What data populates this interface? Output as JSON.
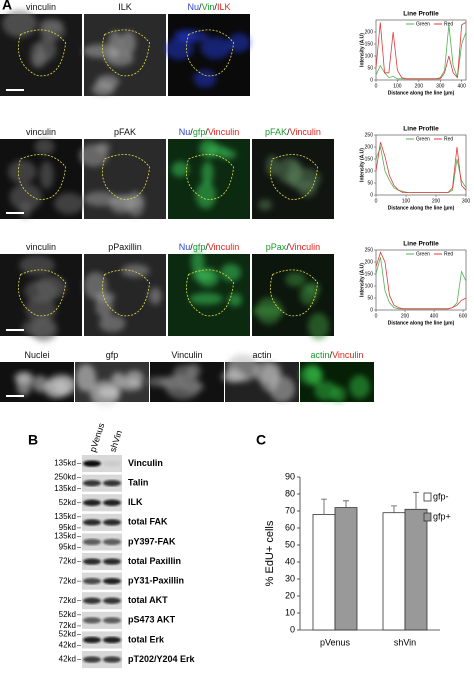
{
  "figure": {
    "panel_labels": [
      "A",
      "B",
      "C"
    ],
    "image_labels": [
      [
        [
          {
            "text": "vinculin",
            "color": "#111111"
          }
        ],
        [
          {
            "text": "ILK",
            "color": "#111111"
          }
        ],
        [
          {
            "text": "Nu",
            "color": "#2a3fd6"
          },
          {
            "text": "/",
            "color": "#111111"
          },
          {
            "text": "Vin",
            "color": "#1a9a2a"
          },
          {
            "text": "/",
            "color": "#111111"
          },
          {
            "text": "ILK",
            "color": "#e0201a"
          }
        ]
      ],
      [
        [
          {
            "text": "vinculin",
            "color": "#111111"
          }
        ],
        [
          {
            "text": "pFAK",
            "color": "#111111"
          }
        ],
        [
          {
            "text": "Nu",
            "color": "#2a3fd6"
          },
          {
            "text": "/",
            "color": "#111111"
          },
          {
            "text": "gfp",
            "color": "#1a9a2a"
          },
          {
            "text": "/",
            "color": "#111111"
          },
          {
            "text": "Vinculin",
            "color": "#e0201a"
          }
        ],
        [
          {
            "text": "pFAK",
            "color": "#1a9a2a"
          },
          {
            "text": "/",
            "color": "#111111"
          },
          {
            "text": "Vinculin",
            "color": "#e0201a"
          }
        ]
      ],
      [
        [
          {
            "text": "vinculin",
            "color": "#111111"
          }
        ],
        [
          {
            "text": "pPaxillin",
            "color": "#111111"
          }
        ],
        [
          {
            "text": "Nu",
            "color": "#2a3fd6"
          },
          {
            "text": "/",
            "color": "#111111"
          },
          {
            "text": "gfp",
            "color": "#1a9a2a"
          },
          {
            "text": "/",
            "color": "#111111"
          },
          {
            "text": "Vinculin",
            "color": "#e0201a"
          }
        ],
        [
          {
            "text": "pPax",
            "color": "#1a9a2a"
          },
          {
            "text": "/",
            "color": "#111111"
          },
          {
            "text": "Vinculin",
            "color": "#e0201a"
          }
        ]
      ],
      [
        [
          {
            "text": "Nuclei",
            "color": "#111111"
          }
        ],
        [
          {
            "text": "gfp",
            "color": "#111111"
          }
        ],
        [
          {
            "text": "Vinculin",
            "color": "#111111"
          }
        ],
        [
          {
            "text": "actin",
            "color": "#111111"
          }
        ],
        [
          {
            "text": "actin",
            "color": "#1a9a2a"
          },
          {
            "text": "/",
            "color": "#111111"
          },
          {
            "text": "Vinculin",
            "color": "#e0201a"
          }
        ]
      ]
    ],
    "blot": {
      "lanes": [
        "pVenus",
        "shVin"
      ],
      "rows": [
        {
          "markers": [
            "135kd"
          ],
          "protein": "Vinculin"
        },
        {
          "markers": [
            "250kd",
            "135kd"
          ],
          "protein": "Talin"
        },
        {
          "markers": [
            "52kd"
          ],
          "protein": "ILK"
        },
        {
          "markers": [
            "135kd",
            "95kd"
          ],
          "protein": "total FAK"
        },
        {
          "markers": [
            "135kd",
            "95kd"
          ],
          "protein": "pY397-FAK"
        },
        {
          "markers": [
            "72kd"
          ],
          "protein": "total Paxillin"
        },
        {
          "markers": [
            "72kd"
          ],
          "protein": "pY31-Paxillin"
        },
        {
          "markers": [
            "72kd"
          ],
          "protein": "total AKT"
        },
        {
          "markers": [
            "52kd",
            "72kd"
          ],
          "protein": "pS473 AKT"
        },
        {
          "markers": [
            "52kd",
            "42kd"
          ],
          "protein": "total Erk"
        },
        {
          "markers": [
            "42kd"
          ],
          "protein": "pT202/Y204 Erk"
        }
      ]
    }
  },
  "chart_data": [
    {
      "type": "line",
      "title": "Line Profile",
      "xlabel": "Distance along the line (µm)",
      "ylabel": "Intensity (A.U)",
      "x": [
        0,
        20,
        40,
        60,
        80,
        100,
        120,
        140,
        160,
        180,
        200,
        220,
        240,
        260,
        280,
        300,
        320,
        340,
        360,
        380,
        400,
        420
      ],
      "series": [
        {
          "name": "Green",
          "color": "#55b055",
          "values": [
            20,
            60,
            30,
            10,
            15,
            5,
            5,
            5,
            5,
            5,
            5,
            5,
            5,
            5,
            5,
            10,
            40,
            230,
            60,
            10,
            150,
            200
          ]
        },
        {
          "name": "Red",
          "color": "#e03a3a",
          "values": [
            50,
            240,
            30,
            30,
            200,
            40,
            10,
            5,
            5,
            5,
            5,
            5,
            5,
            5,
            5,
            5,
            30,
            100,
            30,
            10,
            230,
            240
          ]
        }
      ],
      "xlim": [
        0,
        420
      ],
      "ylim": [
        0,
        250
      ],
      "xticks": [
        0,
        100,
        200,
        300,
        400
      ],
      "yticks": [
        0,
        50,
        100,
        150,
        200
      ]
    },
    {
      "type": "line",
      "title": "Line Profile",
      "xlabel": "Distance along the line (µm)",
      "ylabel": "Intensity (A.U)",
      "x": [
        0,
        15,
        30,
        45,
        60,
        75,
        90,
        105,
        120,
        135,
        150,
        165,
        180,
        195,
        210,
        225,
        240,
        255,
        270,
        285,
        300
      ],
      "series": [
        {
          "name": "Green",
          "color": "#55b055",
          "values": [
            150,
            200,
            100,
            60,
            30,
            20,
            15,
            10,
            10,
            10,
            10,
            10,
            10,
            10,
            10,
            10,
            10,
            20,
            150,
            60,
            30
          ]
        },
        {
          "name": "Red",
          "color": "#e03a3a",
          "values": [
            100,
            220,
            160,
            80,
            40,
            20,
            10,
            10,
            10,
            10,
            10,
            10,
            10,
            10,
            10,
            10,
            10,
            30,
            200,
            40,
            20
          ]
        }
      ],
      "xlim": [
        0,
        300
      ],
      "ylim": [
        0,
        250
      ],
      "xticks": [
        0,
        100,
        200,
        300
      ],
      "yticks": [
        0,
        50,
        100,
        150,
        200,
        250
      ]
    },
    {
      "type": "line",
      "title": "Line Profile",
      "xlabel": "Distance along the line (µm)",
      "ylabel": "Intensity (A.U)",
      "x": [
        0,
        31,
        62,
        93,
        124,
        155,
        186,
        217,
        248,
        279,
        310,
        341,
        372,
        403,
        434,
        465,
        496,
        527,
        558,
        589,
        620
      ],
      "series": [
        {
          "name": "Green",
          "color": "#55b055",
          "values": [
            150,
            220,
            80,
            30,
            10,
            5,
            5,
            5,
            5,
            5,
            5,
            5,
            5,
            5,
            5,
            5,
            5,
            10,
            30,
            160,
            120
          ]
        },
        {
          "name": "Red",
          "color": "#e03a3a",
          "values": [
            180,
            240,
            200,
            60,
            20,
            10,
            5,
            5,
            5,
            5,
            5,
            5,
            5,
            5,
            5,
            5,
            5,
            10,
            20,
            40,
            50
          ]
        }
      ],
      "xlim": [
        0,
        620
      ],
      "ylim": [
        0,
        250
      ],
      "xticks": [
        0,
        200,
        400,
        600
      ],
      "yticks": [
        0,
        50,
        100,
        150,
        200,
        250
      ]
    },
    {
      "type": "bar",
      "ylabel": "% EdU+ cells",
      "categories": [
        "pVenus",
        "shVin"
      ],
      "series": [
        {
          "name": "gfp-",
          "color": "#ffffff",
          "values": [
            68,
            69
          ],
          "errors": [
            9,
            4
          ]
        },
        {
          "name": "gfp+",
          "color": "#999999",
          "values": [
            72,
            71
          ],
          "errors": [
            4,
            10
          ]
        }
      ],
      "ylim": [
        0,
        90
      ],
      "yticks": [
        0,
        10,
        20,
        30,
        40,
        50,
        60,
        70,
        80,
        90
      ],
      "legend": "upper right"
    }
  ]
}
